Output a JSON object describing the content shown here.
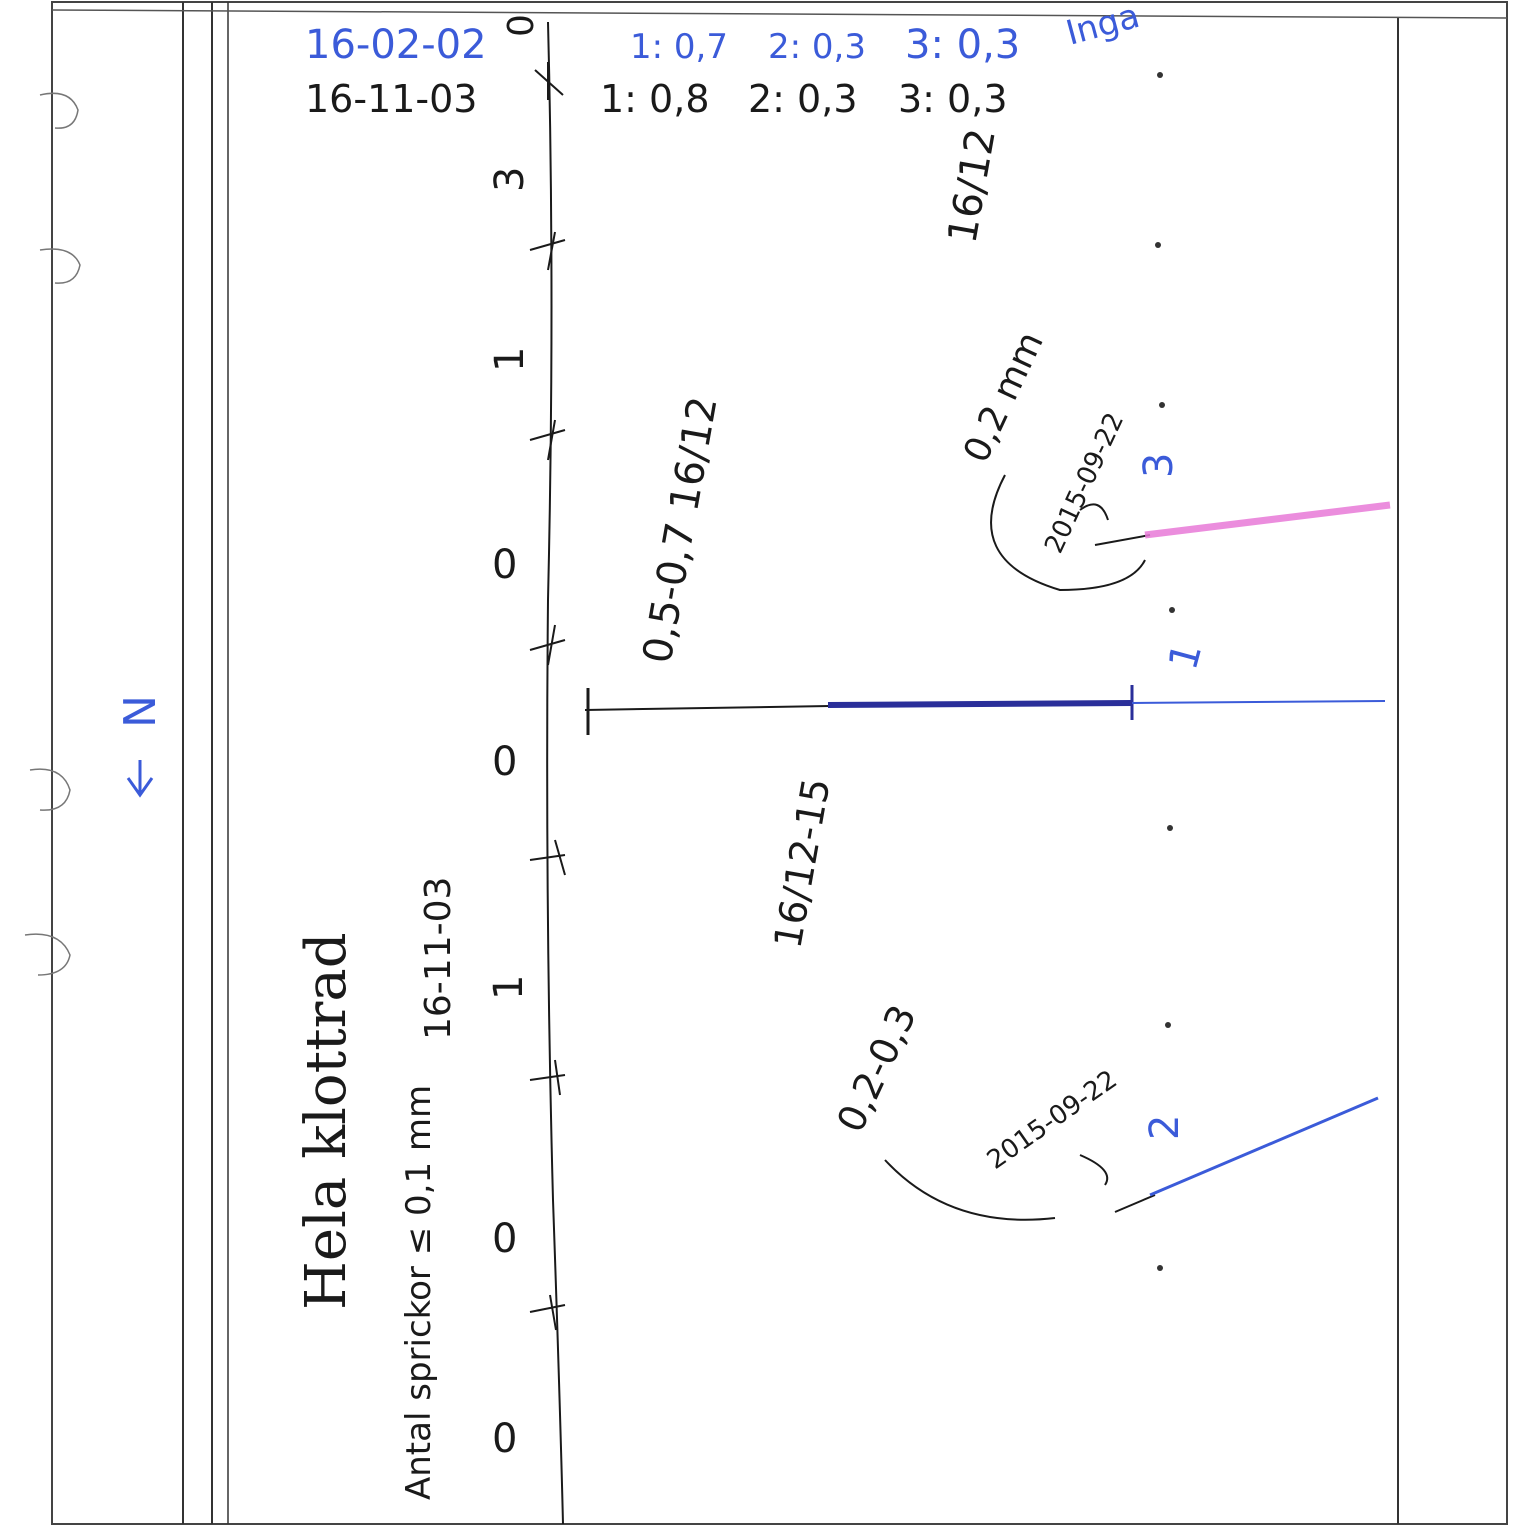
{
  "top_rows": {
    "blue": {
      "date": "16-02-02",
      "values": [
        "1: 0,7",
        "2: 0,3",
        "3: 0,3"
      ],
      "note": "Inga"
    },
    "black": {
      "date": "16-11-03",
      "values": [
        "1: 0,8",
        "2: 0,3",
        "3: 0,3"
      ]
    }
  },
  "north_marker": "N",
  "title": "Hela klottrad",
  "subtitle": "Antal sprickor ≤ 0,1 mm",
  "subtitle_date": "16-11-03",
  "scale_labels": [
    "0",
    "3",
    "1",
    "0",
    "0",
    "1",
    "0",
    "0"
  ],
  "annotations": {
    "upper_range": "0,5-0,7 16/12",
    "upper_small": "0,2 mm",
    "upper_date": "16/12",
    "lower_date": "16/12-15",
    "lower_range": "0,2-0,3",
    "crack_date_upper": "2015-09-22",
    "crack_date_lower": "2015-09-22"
  },
  "crack_numbers": [
    "3",
    "1",
    "2"
  ],
  "colors": {
    "ink_black": "#1a1a1a",
    "ink_blue": "#3b5bd9",
    "ink_dark_blue": "#2a2f9a",
    "highlight_pink": "#e87ad8"
  }
}
